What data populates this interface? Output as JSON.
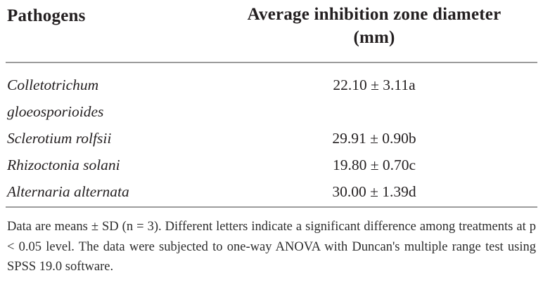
{
  "table": {
    "header": {
      "pathogens": "Pathogens",
      "value_line1": "Average inhibition zone diameter",
      "value_line2": "(mm)"
    },
    "rows": [
      {
        "pathogen": "Colletotrichum gloeosporioides",
        "value": "22.10 ± 3.11a"
      },
      {
        "pathogen": "Sclerotium rolfsii",
        "value": "29.91 ± 0.90b"
      },
      {
        "pathogen": "Rhizoctonia solani",
        "value": "19.80 ± 0.70c"
      },
      {
        "pathogen": "Alternaria alternata",
        "value": "30.00 ± 1.39d"
      }
    ],
    "footnote": "Data are means ± SD (n = 3). Different letters indicate a significant difference among treatments at p < 0.05 level. The data were subjected to one-way ANOVA with Duncan's multiple range test using SPSS 19.0 software."
  },
  "colors": {
    "text": "#231f20",
    "rule": "#9c9c9c",
    "background": "#ffffff"
  }
}
